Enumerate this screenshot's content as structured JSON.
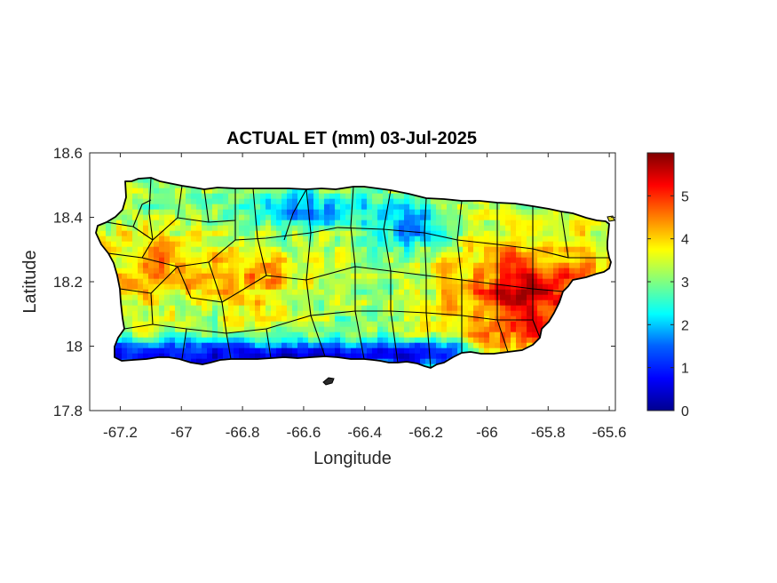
{
  "chart_data": {
    "type": "heatmap",
    "title": "ACTUAL ET (mm) 03-Jul-2025",
    "xlabel": "Longitude",
    "ylabel": "Latitude",
    "xlim": [
      -67.3,
      -65.58
    ],
    "ylim": [
      17.8,
      18.6
    ],
    "x_ticks": [
      -67.2,
      -67.0,
      -66.8,
      -66.6,
      -66.4,
      -66.2,
      -66.0,
      -65.8,
      -65.6
    ],
    "x_tick_labels": [
      "-67.2",
      "-67",
      "-66.8",
      "-66.6",
      "-66.4",
      "-66.2",
      "-66",
      "-65.8",
      "-65.6"
    ],
    "y_ticks": [
      17.8,
      18.0,
      18.2,
      18.4,
      18.6
    ],
    "y_tick_labels": [
      "17.8",
      "18",
      "18.2",
      "18.4",
      "18.6"
    ],
    "colorbar": {
      "colormap": "jet",
      "range": [
        0,
        6
      ],
      "ticks": [
        0,
        1,
        2,
        3,
        4,
        5
      ],
      "tick_labels": [
        "0",
        "1",
        "2",
        "3",
        "4",
        "5"
      ]
    },
    "region": "Puerto Rico municipalities",
    "value_pattern": {
      "south_coast": 0.7,
      "north_central": 1.8,
      "central": 3.2,
      "west": 4.3,
      "east": 5.4
    }
  }
}
